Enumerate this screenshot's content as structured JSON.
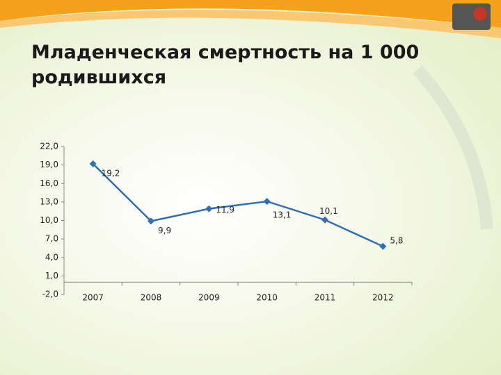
{
  "chart_data": {
    "type": "line",
    "title": "Младенческая смертность на 1 000 родившихся",
    "categories": [
      "2007",
      "2008",
      "2009",
      "2010",
      "2011",
      "2012"
    ],
    "series": [
      {
        "color": "#2f6db5",
        "values": [
          19.2,
          9.9,
          11.9,
          13.1,
          10.1,
          5.8
        ],
        "value_labels": [
          "19,2",
          "9,9",
          "11,9",
          "13,1",
          "10,1",
          "5,8"
        ]
      }
    ],
    "ylim": [
      -2,
      22
    ],
    "yticks": [
      {
        "value": -2,
        "label": "-2,0"
      },
      {
        "value": 1,
        "label": "1,0"
      },
      {
        "value": 4,
        "label": "4,0"
      },
      {
        "value": 7,
        "label": "7,0"
      },
      {
        "value": 10,
        "label": "10,0"
      },
      {
        "value": 13,
        "label": "13,0"
      },
      {
        "value": 16,
        "label": "16,0"
      },
      {
        "value": 19,
        "label": "19,0"
      },
      {
        "value": 22,
        "label": "22,0"
      }
    ],
    "grid": false
  }
}
